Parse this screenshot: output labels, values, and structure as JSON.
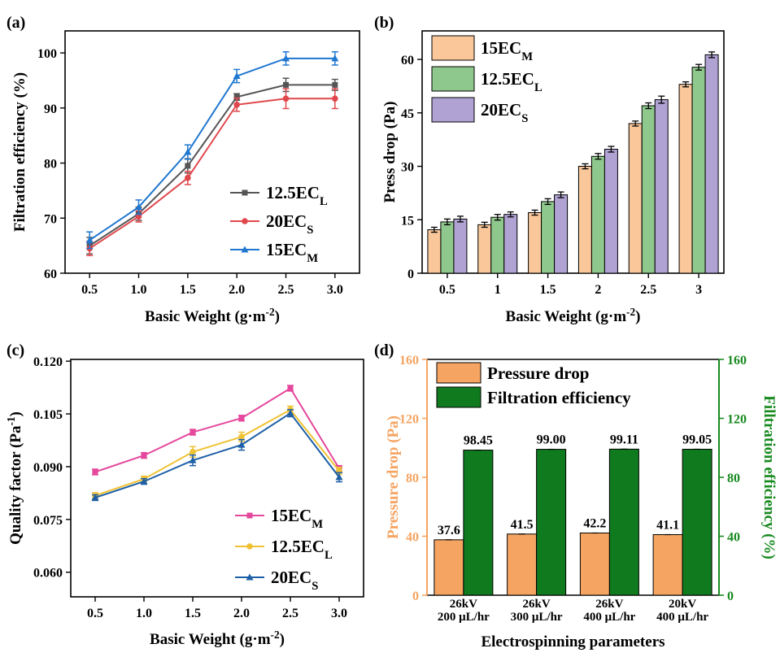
{
  "chart_data": [
    {
      "type": "line",
      "panel_label": "(a)",
      "xlabel": "Basic Weight (g·m",
      "xlabel_sup": "-2",
      "xlabel_end": ")",
      "ylabel": "Filtration efficiency (%)",
      "x": [
        0.5,
        1.0,
        1.5,
        2.0,
        2.5,
        3.0
      ],
      "x_tick_labels": [
        "0.5",
        "1.0",
        "1.5",
        "2.0",
        "2.5",
        "3.0"
      ],
      "xlim": [
        0.25,
        3.25
      ],
      "ylim": [
        60,
        104
      ],
      "y_ticks": [
        60,
        70,
        80,
        90,
        100
      ],
      "legend_position": "bottom-right",
      "series": [
        {
          "name": "12.5EC",
          "sub": "L",
          "color": "#555555",
          "marker": "square",
          "values": [
            65.0,
            70.8,
            79.5,
            92.0,
            94.2,
            94.2
          ],
          "errors": [
            1.5,
            1.2,
            1.3,
            0.6,
            1.2,
            1.0
          ]
        },
        {
          "name": "20EC",
          "sub": "S",
          "color": "#e0474c",
          "marker": "circle",
          "values": [
            64.5,
            70.3,
            77.3,
            90.6,
            91.7,
            91.7
          ],
          "errors": [
            1.3,
            1.0,
            1.2,
            1.2,
            1.8,
            1.8
          ]
        },
        {
          "name": "15EC",
          "sub": "M",
          "color": "#1f77d0",
          "marker": "triangle",
          "values": [
            66.0,
            72.0,
            82.0,
            95.8,
            99.0,
            99.0
          ],
          "errors": [
            1.5,
            1.3,
            1.3,
            1.2,
            1.2,
            1.2
          ]
        }
      ]
    },
    {
      "type": "bar",
      "panel_label": "(b)",
      "xlabel": "Basic Weight (g·m",
      "xlabel_sup": "-2",
      "xlabel_end": ")",
      "ylabel": "Press drop (Pa)",
      "categories": [
        "0.5",
        "1",
        "1.5",
        "2",
        "2.5",
        "3"
      ],
      "ylim": [
        0,
        68
      ],
      "y_ticks": [
        0,
        15,
        30,
        45,
        60
      ],
      "legend_position": "top-left",
      "series": [
        {
          "name": "15EC",
          "sub": "M",
          "color": "#f9c79a",
          "values": [
            12.2,
            13.6,
            17.0,
            30.0,
            42.0,
            53.0
          ],
          "errors": [
            0.7,
            0.7,
            0.7,
            0.7,
            0.7,
            0.7
          ]
        },
        {
          "name": "12.5EC",
          "sub": "L",
          "color": "#8fc88c",
          "values": [
            14.4,
            15.7,
            20.1,
            32.8,
            47.0,
            57.8
          ],
          "errors": [
            0.8,
            0.8,
            0.8,
            0.8,
            0.8,
            0.8
          ]
        },
        {
          "name": "20EC",
          "sub": "S",
          "color": "#b0a2d3",
          "values": [
            15.2,
            16.5,
            22.0,
            34.8,
            48.7,
            61.3
          ],
          "errors": [
            0.8,
            0.7,
            0.8,
            0.8,
            1.0,
            0.8
          ]
        }
      ]
    },
    {
      "type": "line",
      "panel_label": "(c)",
      "xlabel": "Basic Weight (g·m",
      "xlabel_sup": "-2",
      "xlabel_end": ")",
      "ylabel": "Quality factor (Pa",
      "ylabel_sup": "-1",
      "ylabel_end": ")",
      "x": [
        0.5,
        1.0,
        1.5,
        2.0,
        2.5,
        3.0
      ],
      "x_tick_labels": [
        "0.5",
        "1.0",
        "1.5",
        "2.0",
        "2.5",
        "3.0"
      ],
      "xlim": [
        0.25,
        3.25
      ],
      "ylim": [
        0.053,
        0.1205
      ],
      "y_ticks": [
        0.06,
        0.075,
        0.09,
        0.105,
        0.12
      ],
      "y_tick_labels": [
        "0.060",
        "0.075",
        "0.090",
        "0.105",
        "0.120"
      ],
      "legend_position": "bottom-right",
      "series": [
        {
          "name": "15EC",
          "sub": "M",
          "color": "#e5479c",
          "marker": "square",
          "values": [
            0.0885,
            0.0932,
            0.0998,
            0.1038,
            0.1123,
            0.0895
          ],
          "errors": [
            0.0008,
            0.0008,
            0.0008,
            0.0008,
            0.0008,
            0.0008
          ]
        },
        {
          "name": "12.5EC",
          "sub": "L",
          "color": "#efc234",
          "marker": "circle",
          "values": [
            0.0818,
            0.0865,
            0.0942,
            0.0985,
            0.1062,
            0.0888
          ],
          "errors": [
            0.0008,
            0.0008,
            0.0015,
            0.0013,
            0.001,
            0.001
          ]
        },
        {
          "name": "20EC",
          "sub": "S",
          "color": "#1d5fa6",
          "marker": "triangle",
          "values": [
            0.0812,
            0.0858,
            0.0918,
            0.0962,
            0.1052,
            0.087
          ],
          "errors": [
            0.0008,
            0.0008,
            0.0015,
            0.0015,
            0.001,
            0.0013
          ]
        }
      ]
    },
    {
      "type": "bar",
      "panel_label": "(d)",
      "xlabel": "Electrospinning parameters",
      "ylabel": "Pressure drop (Pa)",
      "ylabel_right": "Filltration efficiency (%)",
      "categories": [
        {
          "line1": "26kV",
          "line2": "200 μL/hr"
        },
        {
          "line1": "26kV",
          "line2": "300 μL/hr"
        },
        {
          "line1": "26kV",
          "line2": "400 μL/hr"
        },
        {
          "line1": "20kV",
          "line2": "400 μL/hr"
        }
      ],
      "ylim": [
        0,
        160
      ],
      "y_ticks": [
        0,
        40,
        80,
        120,
        160
      ],
      "ylim_right": [
        0,
        160
      ],
      "legend_position": "top",
      "series": [
        {
          "name": "Pressure drop",
          "color": "#f5a462",
          "axis": "left",
          "values": [
            37.6,
            41.5,
            42.2,
            41.1
          ],
          "labels": [
            "37.6",
            "41.5",
            "42.2",
            "41.1"
          ]
        },
        {
          "name": "Filtration efficiency",
          "color": "#0f7a1e",
          "axis": "right",
          "values": [
            98.45,
            99.0,
            99.11,
            99.05
          ],
          "labels": [
            "98.45",
            "99.00",
            "99.11",
            "99.05"
          ]
        }
      ],
      "left_axis_color": "#f5a462",
      "right_axis_color": "#178a1f"
    }
  ]
}
